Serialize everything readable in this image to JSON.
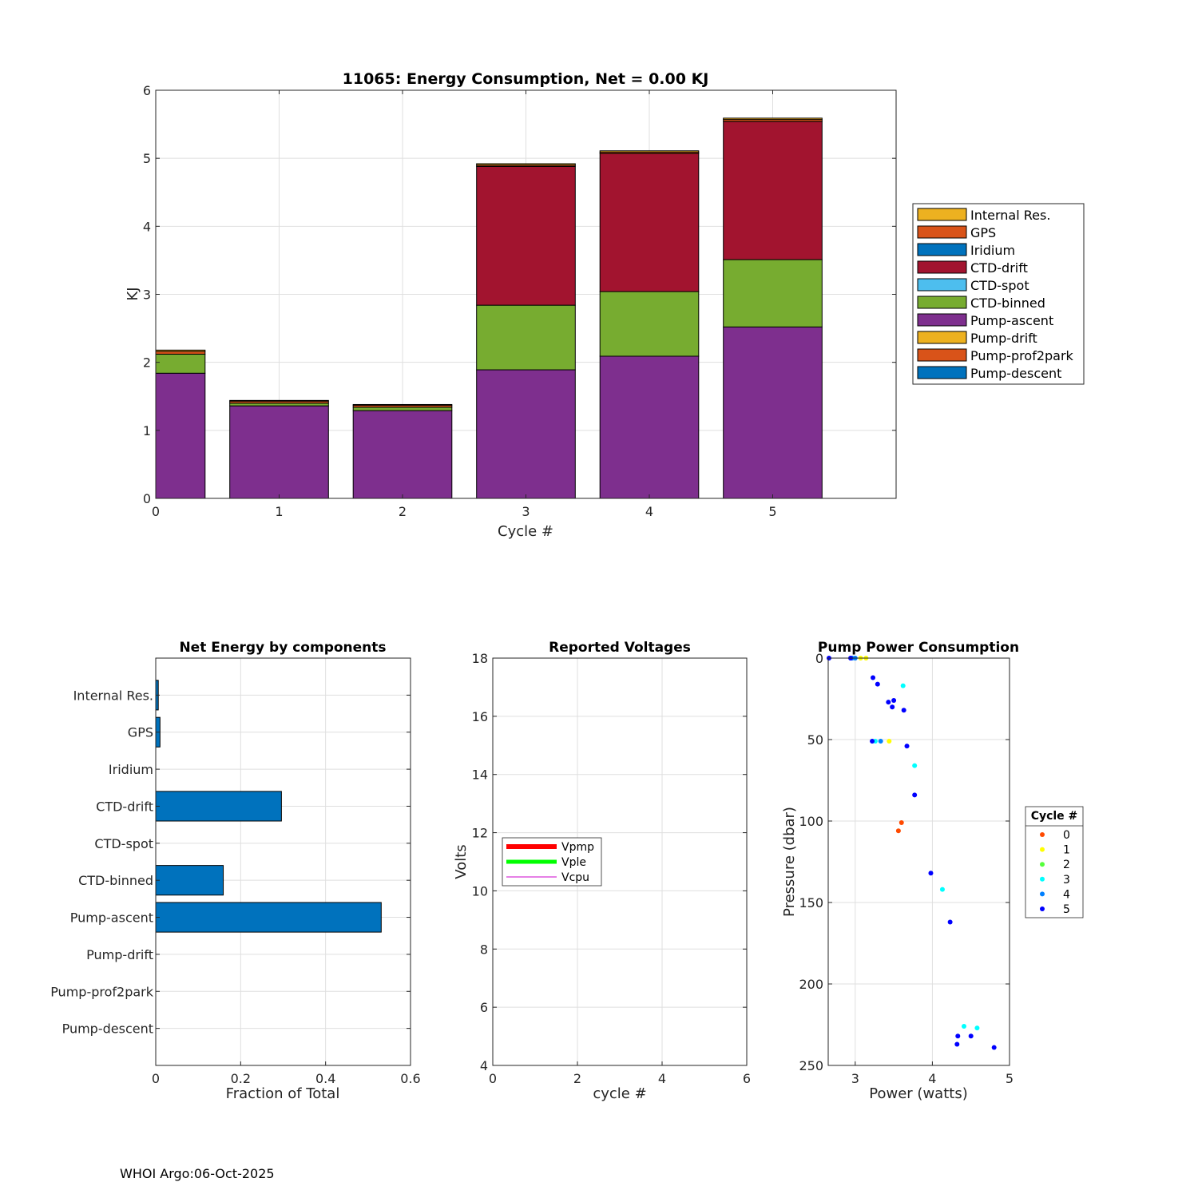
{
  "footer": "WHOI Argo:06-Oct-2025",
  "colors": {
    "internal_res": "#EDB120",
    "gps": "#D95319",
    "iridium": "#0072BD",
    "ctd_drift": "#A2142F",
    "ctd_spot": "#4DBEEE",
    "ctd_binned": "#77AC30",
    "pump_ascent": "#7E2F8E",
    "pump_drift": "#EDB120",
    "pump_prof2park": "#D95319",
    "pump_descent": "#0072BD",
    "hbar": "#0072BD"
  },
  "chart_data": [
    {
      "id": "energy",
      "type": "bar",
      "stacked": true,
      "title": "11065: Energy Consumption,  Net =   0.00 KJ",
      "xlabel": "Cycle #",
      "ylabel": "KJ",
      "xlim": [
        0,
        6
      ],
      "ylim": [
        0,
        6
      ],
      "xticks": [
        0,
        1,
        2,
        3,
        4,
        5
      ],
      "yticks": [
        0,
        1,
        2,
        3,
        4,
        5,
        6
      ],
      "grid": true,
      "legend_position": "outside-right",
      "categories": [
        0,
        1,
        2,
        3,
        4,
        5
      ],
      "series": [
        {
          "name": "Pump-descent",
          "color_key": "pump_descent",
          "values": [
            0,
            0,
            0,
            0,
            0,
            0
          ]
        },
        {
          "name": "Pump-prof2park",
          "color_key": "pump_prof2park",
          "values": [
            0,
            0,
            0,
            0,
            0,
            0
          ]
        },
        {
          "name": "Pump-drift",
          "color_key": "pump_drift",
          "values": [
            0,
            0,
            0,
            0,
            0,
            0
          ]
        },
        {
          "name": "Pump-ascent",
          "color_key": "pump_ascent",
          "values": [
            1.84,
            1.36,
            1.29,
            1.89,
            2.09,
            2.52
          ]
        },
        {
          "name": "CTD-binned",
          "color_key": "ctd_binned",
          "values": [
            0.28,
            0.04,
            0.05,
            0.95,
            0.95,
            0.99
          ]
        },
        {
          "name": "CTD-spot",
          "color_key": "ctd_spot",
          "values": [
            0,
            0,
            0,
            0,
            0,
            0
          ]
        },
        {
          "name": "CTD-drift",
          "color_key": "ctd_drift",
          "values": [
            0,
            0,
            0,
            2.04,
            2.03,
            2.03
          ]
        },
        {
          "name": "Iridium",
          "color_key": "iridium",
          "values": [
            0,
            0,
            0,
            0,
            0,
            0
          ]
        },
        {
          "name": "GPS",
          "color_key": "gps",
          "values": [
            0.04,
            0.03,
            0.03,
            0.02,
            0.02,
            0.03
          ]
        },
        {
          "name": "Internal Res.",
          "color_key": "internal_res",
          "values": [
            0.02,
            0.01,
            0.01,
            0.02,
            0.02,
            0.02
          ]
        }
      ],
      "legend": [
        "Internal Res.",
        "GPS",
        "Iridium",
        "CTD-drift",
        "CTD-spot",
        "CTD-binned",
        "Pump-ascent",
        "Pump-drift",
        "Pump-prof2park",
        "Pump-descent"
      ]
    },
    {
      "id": "net",
      "type": "bar",
      "orientation": "horizontal",
      "title": "Net Energy by components",
      "xlabel": "Fraction of Total",
      "xlim": [
        0,
        0.6
      ],
      "xticks": [
        0,
        0.2,
        0.4,
        0.6
      ],
      "xtick_labels": [
        "0",
        "0.2",
        "0.4",
        "0.6"
      ],
      "grid": true,
      "categories": [
        "Internal Res.",
        "GPS",
        "Iridium",
        "CTD-drift",
        "CTD-spot",
        "CTD-binned",
        "Pump-ascent",
        "Pump-drift",
        "Pump-prof2park",
        "Pump-descent"
      ],
      "values": [
        0.006,
        0.01,
        0,
        0.296,
        0,
        0.159,
        0.531,
        0,
        0,
        0
      ]
    },
    {
      "id": "volts",
      "type": "line",
      "title": "Reported Voltages",
      "xlabel": "cycle #",
      "ylabel": "Volts",
      "xlim": [
        0,
        6
      ],
      "ylim": [
        4,
        18
      ],
      "xticks": [
        0,
        2,
        4,
        6
      ],
      "yticks": [
        4,
        6,
        8,
        10,
        12,
        14,
        16,
        18
      ],
      "grid": true,
      "legend_position": "middle-left",
      "series": [
        {
          "name": "Vpmp",
          "color": "#FF0000",
          "values": []
        },
        {
          "name": "Vple",
          "color": "#00FF00",
          "values": []
        },
        {
          "name": "Vcpu",
          "color": "#CC00CC",
          "values": []
        }
      ]
    },
    {
      "id": "pump",
      "type": "scatter",
      "title": "Pump Power Consumption",
      "xlabel": "Power (watts)",
      "ylabel": "Pressure (dbar)",
      "xlim": [
        2.65,
        5
      ],
      "ylim": [
        0,
        250
      ],
      "y_reversed": true,
      "xticks": [
        3,
        4,
        5
      ],
      "yticks": [
        0,
        50,
        100,
        150,
        200,
        250
      ],
      "grid": true,
      "legend_title": "Cycle #",
      "legend_position": "outside-right",
      "series": [
        {
          "name": "0",
          "color": "#FF4A00",
          "points": [
            [
              3.6,
              101
            ],
            [
              3.56,
              106
            ]
          ]
        },
        {
          "name": "1",
          "color": "#FFFF00",
          "points": [
            [
              3.07,
              0
            ],
            [
              3.14,
              0
            ],
            [
              3.44,
              51
            ]
          ]
        },
        {
          "name": "2",
          "color": "#55FF3A",
          "points": []
        },
        {
          "name": "3",
          "color": "#00FFFF",
          "points": [
            [
              3.62,
              17
            ],
            [
              3.77,
              66
            ],
            [
              3.26,
              51
            ],
            [
              4.13,
              142
            ],
            [
              4.41,
              226
            ],
            [
              4.58,
              227
            ]
          ]
        },
        {
          "name": "4",
          "color": "#0080FF",
          "points": [
            [
              2.96,
              0
            ],
            [
              3.0,
              0
            ],
            [
              3.33,
              51
            ]
          ]
        },
        {
          "name": "5",
          "color": "#0000FF",
          "points": [
            [
              2.66,
              0
            ],
            [
              2.94,
              0
            ],
            [
              3.23,
              12
            ],
            [
              3.29,
              16
            ],
            [
              3.43,
              27
            ],
            [
              3.5,
              26
            ],
            [
              3.48,
              30
            ],
            [
              3.63,
              32
            ],
            [
              3.22,
              51
            ],
            [
              3.67,
              54
            ],
            [
              3.77,
              84
            ],
            [
              3.98,
              132
            ],
            [
              4.23,
              162
            ],
            [
              4.33,
              232
            ],
            [
              4.5,
              232
            ],
            [
              4.32,
              237
            ],
            [
              4.8,
              239
            ]
          ]
        }
      ]
    }
  ]
}
